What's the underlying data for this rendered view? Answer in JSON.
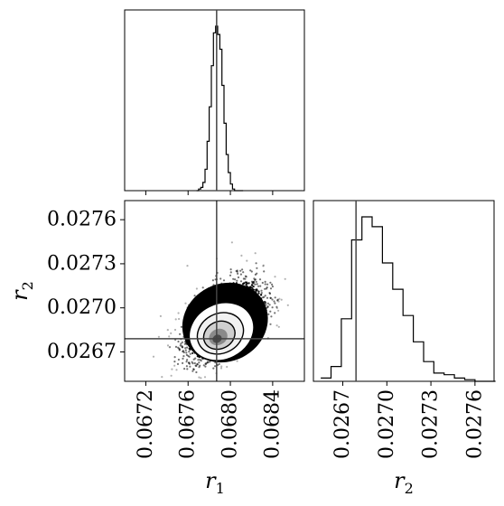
{
  "chart_data": [
    {
      "type": "histogram",
      "panel": "r1-marginal",
      "x_range": [
        0.067,
        0.0687
      ],
      "truth": 0.06787,
      "bins": [
        0.06768,
        0.0677,
        0.06772,
        0.06774,
        0.06776,
        0.06778,
        0.0678,
        0.06782,
        0.06784,
        0.06786,
        0.06788,
        0.0679,
        0.06792,
        0.06794,
        0.06796,
        0.06798,
        0.068,
        0.06802,
        0.06804,
        0.06806,
        0.06808,
        0.0681,
        0.06812
      ],
      "counts": [
        0.0,
        0.01,
        0.02,
        0.05,
        0.13,
        0.3,
        0.51,
        0.76,
        0.96,
        1.0,
        0.95,
        0.86,
        0.64,
        0.41,
        0.22,
        0.11,
        0.04,
        0.01,
        0.0,
        0.0,
        0.0,
        0.0
      ]
    },
    {
      "type": "scatter-density",
      "panel": "r1-r2-joint",
      "x_range": [
        0.067,
        0.0687
      ],
      "y_range": [
        0.0265,
        0.02773
      ],
      "x_ticks": [
        "0.0672",
        "0.0676",
        "0.0680",
        "0.0684"
      ],
      "y_ticks": [
        "0.0276",
        "0.0273",
        "0.0270",
        "0.0267"
      ],
      "xlabel": "r",
      "xlabel_sub": "1",
      "ylabel": "r",
      "ylabel_sub": "2",
      "truth_x": 0.06787,
      "truth_y": 0.02679,
      "mean": [
        0.06795,
        0.0269
      ],
      "sd": [
        0.00018,
        0.00012
      ],
      "correlation": 0.55
    },
    {
      "type": "histogram",
      "panel": "r2-marginal",
      "x_range": [
        0.0265,
        0.02773
      ],
      "truth": 0.02679,
      "x_ticks": [
        "0.0267",
        "0.0270",
        "0.0273",
        "0.0276"
      ],
      "xlabel": "r",
      "xlabel_sub": "2",
      "bins": [
        0.02655,
        0.02662,
        0.02669,
        0.02676,
        0.02683,
        0.0269,
        0.02697,
        0.02704,
        0.02711,
        0.02718,
        0.02725,
        0.02732,
        0.02739,
        0.02746,
        0.02753,
        0.0276,
        0.02767,
        0.02774
      ],
      "counts": [
        0.02,
        0.09,
        0.38,
        0.86,
        1.0,
        0.94,
        0.72,
        0.56,
        0.4,
        0.24,
        0.12,
        0.05,
        0.04,
        0.02,
        0.01,
        0.0,
        0.0
      ]
    }
  ]
}
